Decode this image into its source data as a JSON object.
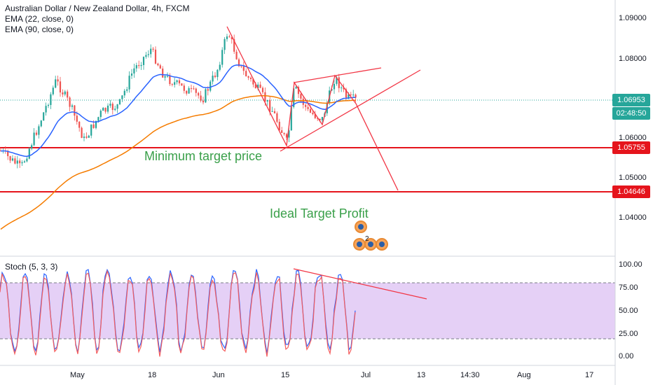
{
  "header": {
    "symbol_title": "Australian Dollar / New Zealand Dollar, 4h, FXCM",
    "ema1": "EMA (22, close, 0)",
    "ema2": "EMA (90, close, 0)"
  },
  "price_axis": {
    "ticks": [
      "1.09000",
      "1.08000",
      "1.06000",
      "1.05000",
      "1.04000"
    ],
    "current_price": "1.06953",
    "countdown": "02:48:50",
    "level1": "1.05755",
    "level2": "1.04646",
    "colors": {
      "current": "#26a69a",
      "countdown": "#26a69a",
      "level": "#e5141c"
    }
  },
  "annotations": {
    "min_target": "Minimum target price",
    "ideal_target": "Ideal Target Profit",
    "event_count": "2"
  },
  "stoch": {
    "label": "Stoch (5, 3, 3)",
    "ticks": [
      "100.00",
      "75.00",
      "50.00",
      "25.00",
      "0.00"
    ]
  },
  "time_axis": {
    "labels": [
      "May",
      "18",
      "Jun",
      "15",
      "Jul",
      "13",
      "14:30",
      "Aug",
      "17"
    ]
  },
  "chart_data": {
    "type": "candlestick",
    "title": "Australian Dollar / New Zealand Dollar, 4h, FXCM",
    "ylim": [
      1.033,
      1.0935
    ],
    "levels": [
      1.06953,
      1.05755,
      1.04646
    ],
    "series": [
      {
        "name": "EMA (22, close, 0)",
        "color": "#2962ff"
      },
      {
        "name": "EMA (90, close, 0)",
        "color": "#f57c00"
      }
    ],
    "oscillator": {
      "name": "Stoch (5, 3, 3)",
      "ylim": [
        0,
        100
      ],
      "bands": [
        20,
        80
      ]
    }
  }
}
